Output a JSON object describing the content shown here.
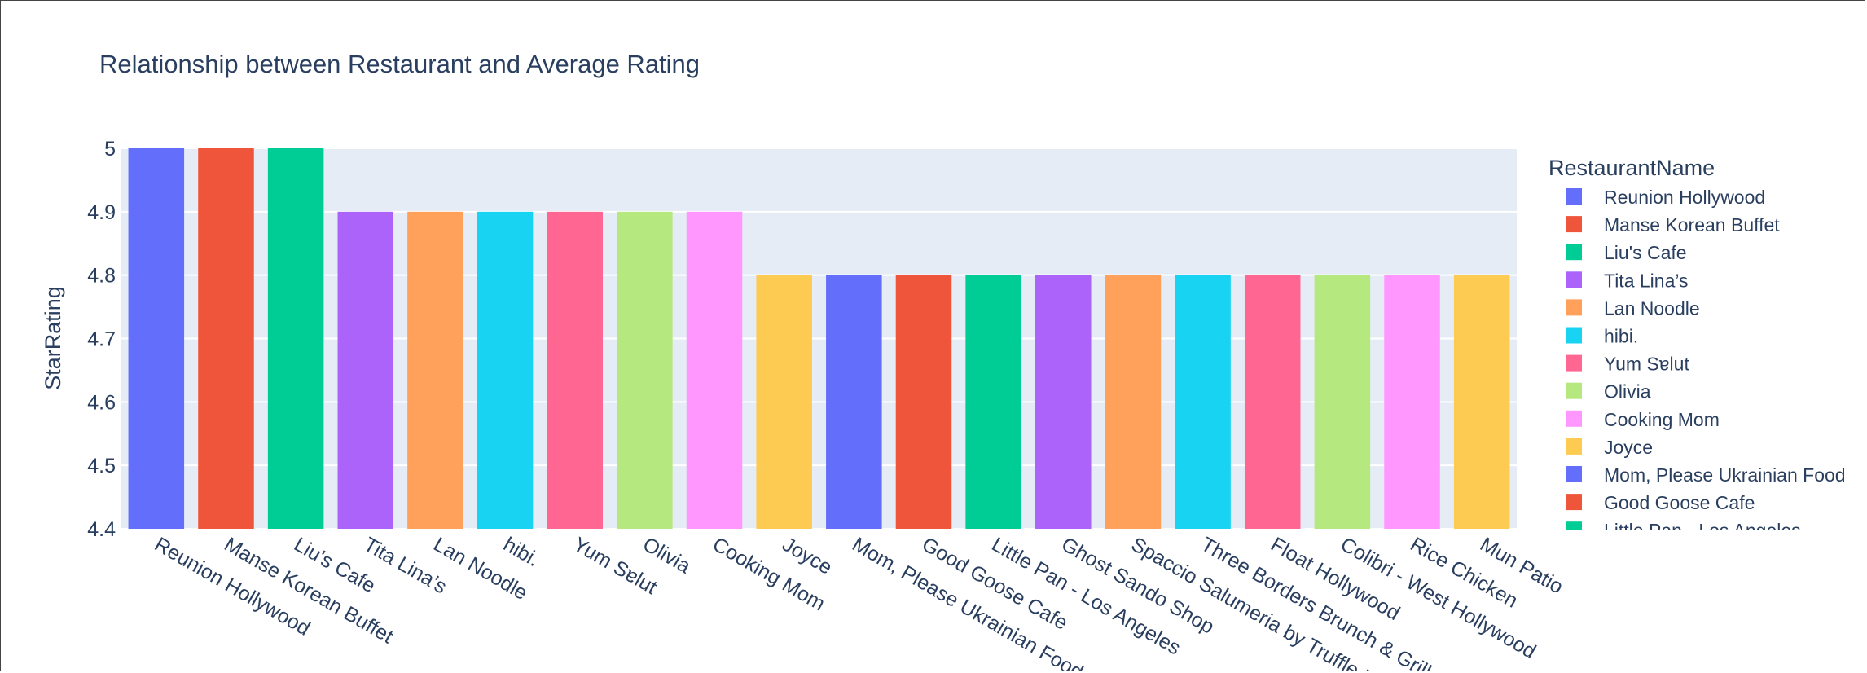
{
  "chart_data": {
    "type": "bar",
    "title": "Relationship between Restaurant and Average Rating",
    "xlabel": "",
    "ylabel": "StarRating",
    "ylim": [
      4.4,
      5.0
    ],
    "yticks": [
      "4.4",
      "4.5",
      "4.6",
      "4.7",
      "4.8",
      "4.9",
      "5"
    ],
    "grid": true,
    "legend_title": "RestaurantName",
    "legend_position": "right",
    "plot_bg": "#e5ecf6",
    "categories": [
      "Reunion Hollywood",
      "Manse Korean Buffet",
      "Liu's Cafe",
      "Tita Lina’s",
      "Lan Noodle",
      "hibi.",
      "Yum Sɐlut",
      "Olivia",
      "Cooking Mom",
      "Joyce",
      "Mom, Please Ukrainian Food",
      "Good Goose Cafe",
      "Little Pan - Los Angeles",
      "Ghost Sando Shop",
      "Spaccio Salumeria by Truffle Bros",
      "Three Borders Brunch & Grill",
      "Float Hollywood",
      "Colibri - West Hollywood",
      "Rice Chicken",
      "Mun Patio"
    ],
    "values": [
      5.0,
      5.0,
      5.0,
      4.9,
      4.9,
      4.9,
      4.9,
      4.9,
      4.9,
      4.8,
      4.8,
      4.8,
      4.8,
      4.8,
      4.8,
      4.8,
      4.8,
      4.8,
      4.8,
      4.8
    ],
    "colors": [
      "#636efa",
      "#EF553B",
      "#00cc96",
      "#ab63fa",
      "#FFA15A",
      "#19d3f3",
      "#FF6692",
      "#B6E880",
      "#FF97FF",
      "#FECB52",
      "#636efa",
      "#EF553B",
      "#00cc96",
      "#ab63fa",
      "#FFA15A",
      "#19d3f3",
      "#FF6692",
      "#B6E880",
      "#FF97FF",
      "#FECB52"
    ],
    "legend_entries": [
      "Reunion Hollywood",
      "Manse Korean Buffet",
      "Liu's Cafe",
      "Tita Lina’s",
      "Lan Noodle",
      "hibi.",
      "Yum Sɐlut",
      "Olivia",
      "Cooking Mom",
      "Joyce",
      "Mom, Please Ukrainian Food",
      "Good Goose Cafe",
      "Little Pan - Los Angeles"
    ]
  }
}
